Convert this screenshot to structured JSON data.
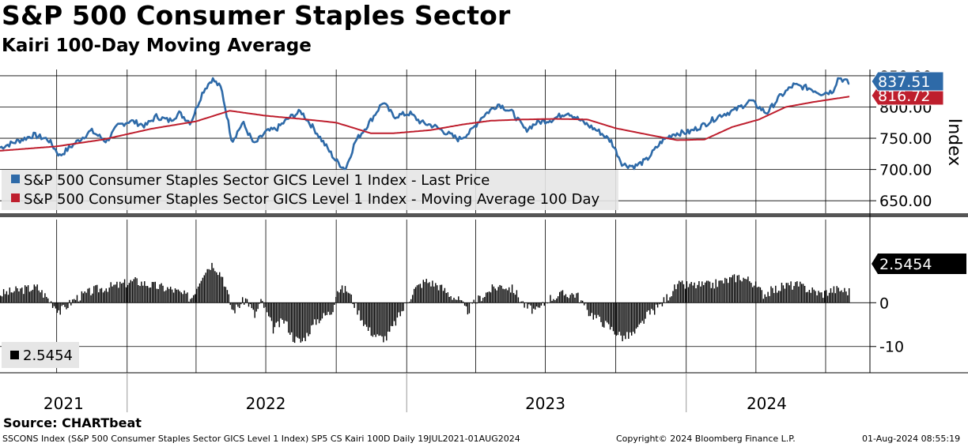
{
  "header": {
    "title": "S&P 500 Consumer Staples Sector",
    "subtitle": "Kairi 100-Day Moving Average"
  },
  "footer": {
    "source": "Source: CHARTbeat",
    "ticker_desc": "SSCONS Index (S&P 500 Consumer Staples Sector GICS Level 1 Index) SP5 CS Kairi 100D  Daily 19JUL2021-01AUG2024",
    "copyright": "Copyright© 2024 Bloomberg Finance L.P.",
    "timestamp": "01-Aug-2024 08:55:19"
  },
  "colors": {
    "price": "#2e6aa8",
    "ma": "#be1e2d",
    "kairi": "#000000"
  },
  "chart_data": [
    {
      "type": "line",
      "ylabel": "Index",
      "ylim": [
        630,
        860
      ],
      "yticks": [
        "850.00",
        "800.00",
        "750.00",
        "700.00",
        "650.00"
      ],
      "ytick_values": [
        850,
        800,
        750,
        700,
        650
      ],
      "xlabels": [
        "2021",
        "2022",
        "2023",
        "2024"
      ],
      "xlim": [
        "2021-07-19",
        "2024-08-01"
      ],
      "legend_position": "bottom-left",
      "series": [
        {
          "name": "S&P 500 Consumer Staples Sector GICS Level 1 Index - Last Price",
          "last_label": "837.51",
          "points": [
            [
              "2021-07-19",
              735
            ],
            [
              "2021-08-10",
              745
            ],
            [
              "2021-09-01",
              755
            ],
            [
              "2021-09-20",
              748
            ],
            [
              "2021-10-05",
              722
            ],
            [
              "2021-10-25",
              742
            ],
            [
              "2021-11-15",
              762
            ],
            [
              "2021-12-05",
              745
            ],
            [
              "2021-12-20",
              770
            ],
            [
              "2022-01-05",
              778
            ],
            [
              "2022-01-25",
              770
            ],
            [
              "2022-02-08",
              785
            ],
            [
              "2022-02-25",
              778
            ],
            [
              "2022-03-10",
              790
            ],
            [
              "2022-03-25",
              775
            ],
            [
              "2022-04-10",
              825
            ],
            [
              "2022-04-22",
              845
            ],
            [
              "2022-05-04",
              830
            ],
            [
              "2022-05-18",
              745
            ],
            [
              "2022-06-01",
              775
            ],
            [
              "2022-06-16",
              740
            ],
            [
              "2022-07-01",
              760
            ],
            [
              "2022-07-15",
              765
            ],
            [
              "2022-08-01",
              783
            ],
            [
              "2022-08-16",
              793
            ],
            [
              "2022-09-05",
              760
            ],
            [
              "2022-09-30",
              715
            ],
            [
              "2022-10-13",
              700
            ],
            [
              "2022-10-26",
              745
            ],
            [
              "2022-11-15",
              778
            ],
            [
              "2022-12-01",
              808
            ],
            [
              "2022-12-15",
              785
            ],
            [
              "2023-01-05",
              790
            ],
            [
              "2023-01-20",
              775
            ],
            [
              "2023-02-05",
              770
            ],
            [
              "2023-02-20",
              760
            ],
            [
              "2023-03-10",
              748
            ],
            [
              "2023-03-25",
              760
            ],
            [
              "2023-04-10",
              785
            ],
            [
              "2023-05-01",
              805
            ],
            [
              "2023-05-20",
              790
            ],
            [
              "2023-06-05",
              763
            ],
            [
              "2023-06-20",
              775
            ],
            [
              "2023-07-10",
              780
            ],
            [
              "2023-07-30",
              792
            ],
            [
              "2023-08-20",
              775
            ],
            [
              "2023-09-10",
              760
            ],
            [
              "2023-09-25",
              745
            ],
            [
              "2023-10-10",
              708
            ],
            [
              "2023-10-26",
              705
            ],
            [
              "2023-11-10",
              715
            ],
            [
              "2023-11-30",
              745
            ],
            [
              "2023-12-15",
              757
            ],
            [
              "2024-01-05",
              760
            ],
            [
              "2024-01-25",
              772
            ],
            [
              "2024-02-15",
              787
            ],
            [
              "2024-03-05",
              795
            ],
            [
              "2024-03-25",
              810
            ],
            [
              "2024-04-15",
              790
            ],
            [
              "2024-05-01",
              815
            ],
            [
              "2024-05-20",
              835
            ],
            [
              "2024-06-10",
              830
            ],
            [
              "2024-06-25",
              822
            ],
            [
              "2024-07-10",
              825
            ],
            [
              "2024-07-18",
              848
            ],
            [
              "2024-08-01",
              837.51
            ]
          ]
        },
        {
          "name": "S&P 500 Consumer Staples Sector GICS Level 1 Index - Moving Average 100 Day",
          "last_label": "816.72",
          "points": [
            [
              "2021-07-19",
              730
            ],
            [
              "2021-10-01",
              737
            ],
            [
              "2021-12-01",
              748
            ],
            [
              "2022-02-01",
              765
            ],
            [
              "2022-04-01",
              777
            ],
            [
              "2022-05-15",
              794
            ],
            [
              "2022-07-01",
              786
            ],
            [
              "2022-08-15",
              781
            ],
            [
              "2022-10-01",
              775
            ],
            [
              "2022-11-15",
              758
            ],
            [
              "2022-12-15",
              758
            ],
            [
              "2023-02-01",
              763
            ],
            [
              "2023-03-15",
              772
            ],
            [
              "2023-04-20",
              778
            ],
            [
              "2023-06-01",
              780
            ],
            [
              "2023-07-15",
              781
            ],
            [
              "2023-08-25",
              780
            ],
            [
              "2023-10-01",
              766
            ],
            [
              "2023-11-15",
              755
            ],
            [
              "2023-12-20",
              747
            ],
            [
              "2024-01-25",
              748
            ],
            [
              "2024-03-01",
              768
            ],
            [
              "2024-04-05",
              780
            ],
            [
              "2024-05-10",
              800
            ],
            [
              "2024-06-15",
              808
            ],
            [
              "2024-08-01",
              816.72
            ]
          ]
        }
      ]
    },
    {
      "type": "bar",
      "ylabel": "",
      "ylim": [
        -16,
        19
      ],
      "yticks": [
        "0",
        "-10"
      ],
      "ytick_values": [
        0,
        -10
      ],
      "last_label": "2.5454",
      "legend": "2.5454",
      "series": [
        {
          "name": "2.5454",
          "points": [
            [
              "2021-07-19",
              2
            ],
            [
              "2021-08-15",
              3
            ],
            [
              "2021-09-05",
              3.5
            ],
            [
              "2021-10-05",
              -2
            ],
            [
              "2021-10-25",
              1
            ],
            [
              "2021-11-20",
              3
            ],
            [
              "2021-12-20",
              4
            ],
            [
              "2022-01-10",
              5
            ],
            [
              "2022-02-01",
              4
            ],
            [
              "2022-03-01",
              3
            ],
            [
              "2022-03-25",
              1
            ],
            [
              "2022-04-10",
              7
            ],
            [
              "2022-04-22",
              9
            ],
            [
              "2022-05-05",
              6
            ],
            [
              "2022-05-18",
              -2
            ],
            [
              "2022-06-05",
              1
            ],
            [
              "2022-06-16",
              -3
            ],
            [
              "2022-06-25",
              0.5
            ],
            [
              "2022-07-10",
              -6
            ],
            [
              "2022-07-25",
              -4
            ],
            [
              "2022-08-05",
              -8
            ],
            [
              "2022-08-16",
              -9
            ],
            [
              "2022-09-05",
              -4
            ],
            [
              "2022-09-25",
              -2
            ],
            [
              "2022-10-01",
              3
            ],
            [
              "2022-10-15",
              3
            ],
            [
              "2022-10-26",
              -1
            ],
            [
              "2022-11-10",
              -6
            ],
            [
              "2022-11-25",
              -8
            ],
            [
              "2022-12-05",
              -8
            ],
            [
              "2022-12-15",
              -5
            ],
            [
              "2022-12-25",
              -2
            ],
            [
              "2023-01-10",
              3
            ],
            [
              "2023-01-25",
              5
            ],
            [
              "2023-02-10",
              4
            ],
            [
              "2023-02-25",
              2
            ],
            [
              "2023-03-10",
              0.5
            ],
            [
              "2023-03-20",
              -2
            ],
            [
              "2023-04-05",
              1
            ],
            [
              "2023-04-20",
              3
            ],
            [
              "2023-05-05",
              4
            ],
            [
              "2023-05-20",
              3
            ],
            [
              "2023-06-05",
              -1
            ],
            [
              "2023-06-20",
              -2
            ],
            [
              "2023-07-05",
              1
            ],
            [
              "2023-07-25",
              2
            ],
            [
              "2023-08-10",
              2
            ],
            [
              "2023-08-25",
              -2
            ],
            [
              "2023-09-10",
              -4
            ],
            [
              "2023-09-25",
              -6
            ],
            [
              "2023-10-10",
              -8
            ],
            [
              "2023-10-26",
              -7
            ],
            [
              "2023-11-10",
              -3
            ],
            [
              "2023-11-25",
              -1
            ],
            [
              "2023-12-05",
              1
            ],
            [
              "2023-12-20",
              4
            ],
            [
              "2024-01-10",
              4
            ],
            [
              "2024-02-01",
              4
            ],
            [
              "2024-02-20",
              5
            ],
            [
              "2024-03-10",
              6
            ],
            [
              "2024-03-25",
              5
            ],
            [
              "2024-04-10",
              2
            ],
            [
              "2024-04-25",
              3
            ],
            [
              "2024-05-10",
              4
            ],
            [
              "2024-05-25",
              4
            ],
            [
              "2024-06-10",
              3
            ],
            [
              "2024-06-25",
              2
            ],
            [
              "2024-07-10",
              3
            ],
            [
              "2024-07-18",
              3
            ],
            [
              "2024-08-01",
              2.5454
            ]
          ]
        }
      ]
    }
  ]
}
